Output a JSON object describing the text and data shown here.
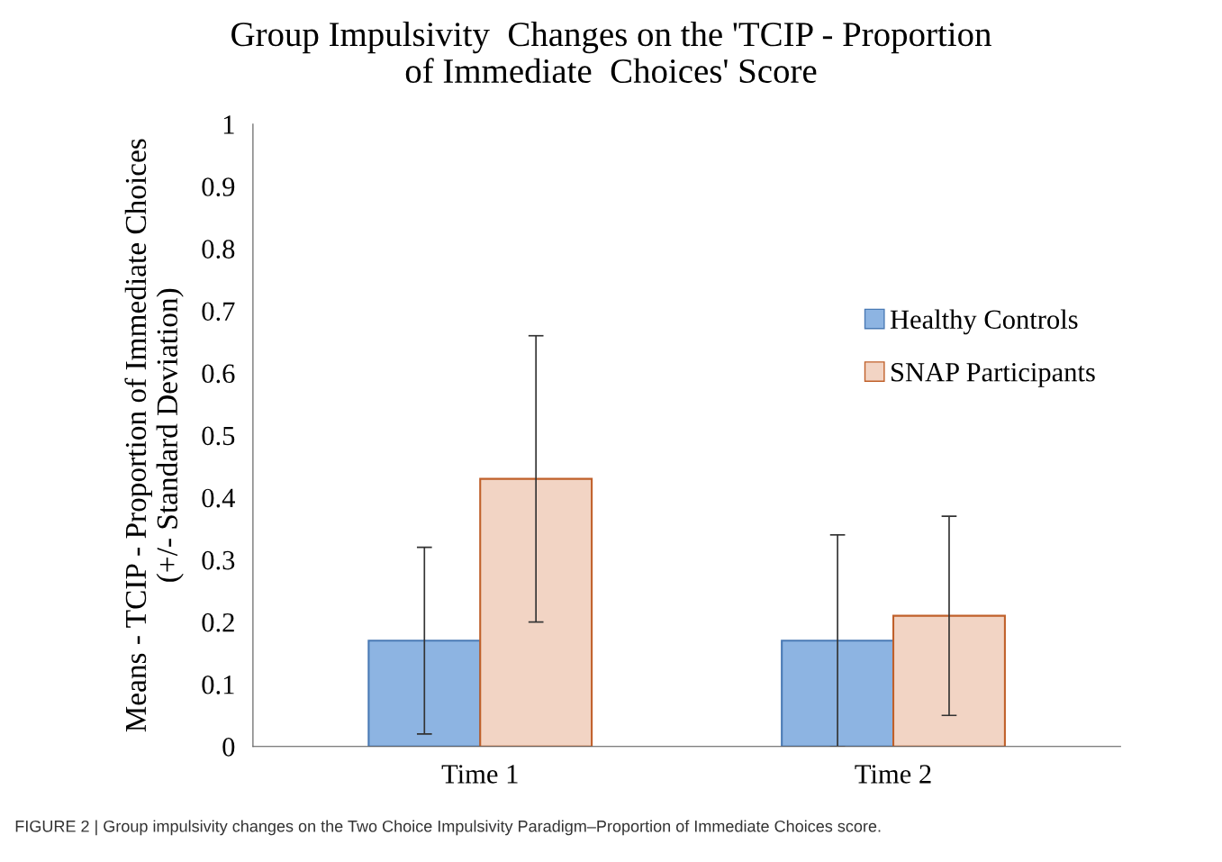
{
  "chart_data": {
    "type": "bar",
    "title": "Group Impulsivity  Changes on the 'TCIP - Proportion\nof Immediate  Choices' Score",
    "ylabel": "Means - TCIP - Proportion of Immediate Choices\n(+/- Standard Deviation)",
    "categories": [
      "Time 1",
      "Time 2"
    ],
    "series": [
      {
        "name": "Healthy Controls",
        "color": "#8db4e2",
        "values": [
          0.17,
          0.17
        ],
        "errors": [
          0.15,
          0.17
        ]
      },
      {
        "name": "SNAP Participants",
        "color": "#f2d4c4",
        "values": [
          0.43,
          0.21
        ],
        "errors": [
          0.23,
          0.16
        ]
      }
    ],
    "ylim": [
      0,
      1
    ],
    "yticks": [
      0,
      0.1,
      0.2,
      0.3,
      0.4,
      0.5,
      0.6,
      0.7,
      0.8,
      0.9,
      1
    ],
    "legend": "right",
    "grid": false,
    "annotations": [
      "FIGURE 2 | Group impulsivity changes on the Two Choice Impulsivity Paradigm–Proportion of Immediate Choices score."
    ]
  }
}
